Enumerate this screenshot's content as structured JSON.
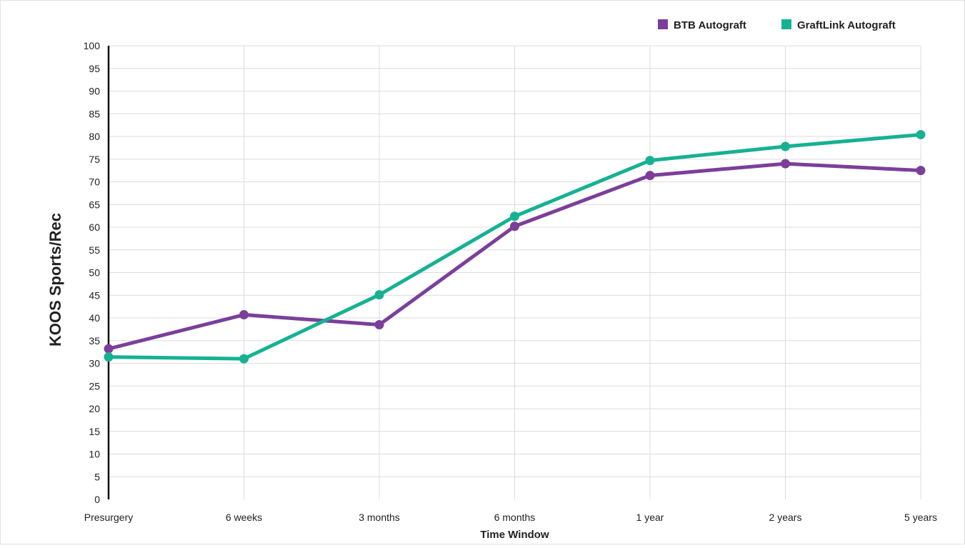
{
  "chart_data": {
    "type": "line",
    "categories": [
      "Presurgery",
      "6 weeks",
      "3 months",
      "6 months",
      "1 year",
      "2 years",
      "5 years"
    ],
    "series": [
      {
        "name": "BTB Autograft",
        "color": "#7b3f9a",
        "values": [
          33.2,
          40.7,
          38.5,
          60.2,
          71.4,
          74.0,
          72.5
        ]
      },
      {
        "name": "GraftLink Autograft",
        "color": "#16b193",
        "values": [
          31.4,
          31.0,
          45.1,
          62.4,
          74.7,
          77.8,
          80.4
        ]
      }
    ],
    "xlabel": "Time Window",
    "ylabel": "KOOS Sports/Rec",
    "ylim": [
      0,
      100
    ],
    "ytick_step": 5,
    "grid": true,
    "legend": "top-right"
  }
}
